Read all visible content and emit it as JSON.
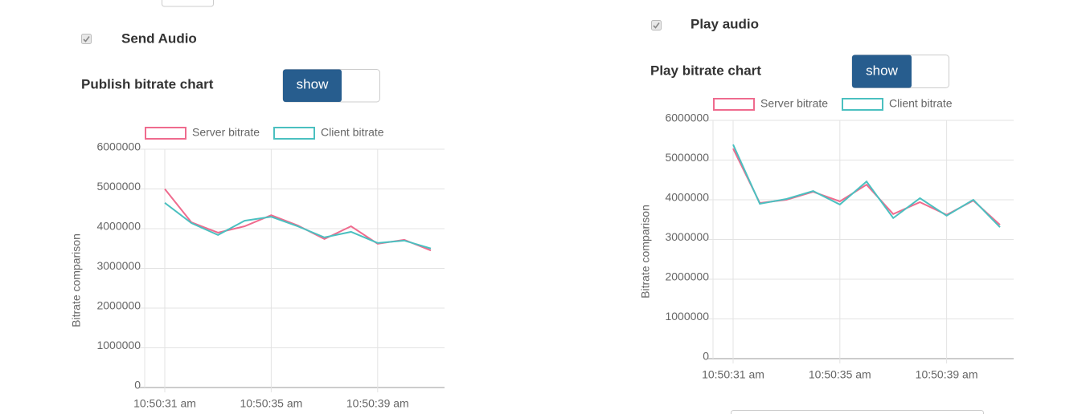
{
  "send_audio": {
    "label": "Send Audio",
    "checked": true
  },
  "publish_chart": {
    "label": "Publish bitrate chart",
    "toggle": "show"
  },
  "play_audio": {
    "label": "Play audio",
    "checked": true
  },
  "play_chart": {
    "label": "Play bitrate chart",
    "toggle": "show"
  },
  "chart_data": [
    {
      "type": "line",
      "y_label": "Bitrate comparison",
      "categories": [
        "10:50:31 am",
        null,
        null,
        null,
        "10:50:35 am",
        null,
        null,
        null,
        "10:50:39 am",
        null,
        null
      ],
      "series": [
        {
          "name": "Server bitrate",
          "color": "#ef6b8e",
          "values": [
            5000000,
            4160000,
            3900000,
            4060000,
            4340000,
            4080000,
            3740000,
            4060000,
            3620000,
            3720000,
            3450000
          ]
        },
        {
          "name": "Client bitrate",
          "color": "#4bc0c0",
          "values": [
            4650000,
            4140000,
            3840000,
            4200000,
            4300000,
            4060000,
            3780000,
            3920000,
            3640000,
            3700000,
            3500000
          ]
        }
      ],
      "ylim": [
        0,
        6000000
      ],
      "yticks": [
        0,
        1000000,
        2000000,
        3000000,
        4000000,
        5000000,
        6000000
      ],
      "grid": true,
      "legend": "top"
    },
    {
      "type": "line",
      "y_label": "Bitrate comparison",
      "categories": [
        "10:50:31 am",
        null,
        null,
        null,
        "10:50:35 am",
        null,
        null,
        null,
        "10:50:39 am",
        null,
        null
      ],
      "series": [
        {
          "name": "Server bitrate",
          "color": "#ef6b8e",
          "values": [
            5290000,
            3920000,
            4000000,
            4200000,
            3960000,
            4380000,
            3640000,
            3940000,
            3620000,
            3980000,
            3370000
          ]
        },
        {
          "name": "Client bitrate",
          "color": "#4bc0c0",
          "values": [
            5390000,
            3900000,
            4020000,
            4220000,
            3880000,
            4460000,
            3540000,
            4040000,
            3600000,
            4000000,
            3310000
          ]
        }
      ],
      "ylim": [
        0,
        6000000
      ],
      "yticks": [
        0,
        1000000,
        2000000,
        3000000,
        4000000,
        5000000,
        6000000
      ],
      "grid": true,
      "legend": "top"
    }
  ]
}
